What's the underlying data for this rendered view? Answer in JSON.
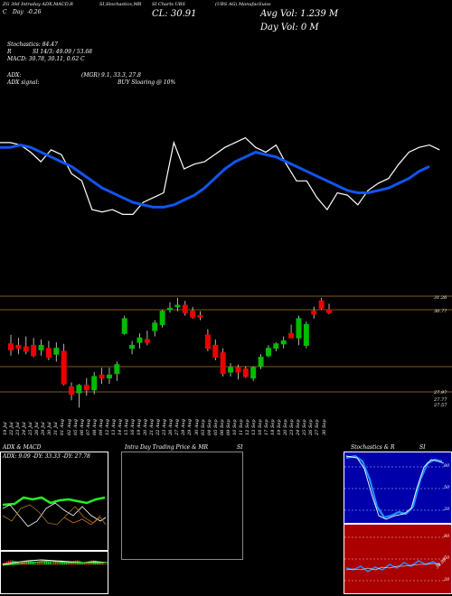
{
  "header": {
    "line1": "ZG 30d Intraday ADX,MACD,R",
    "line1b": "SI,Stochastics,MR",
    "line1c": "SI Charts UBS",
    "line1d": "(UBS AG) ManufacSuiss",
    "c_label": "C",
    "c_label2": "C",
    "change": "-0.26",
    "cl": "CL: 30.91",
    "avg_vol": "Avg Vol: 1.239 M",
    "day_vol": "Day Vol: 0  M"
  },
  "indicators": {
    "stochastics": "Stochastics: 84.47",
    "r": "R",
    "r_value": "SI 14/3: 49.09 / 53.68",
    "macd": "MACD: 30.78, 30.11, 0.62  C",
    "adx": "ADX:",
    "mrsi": "(MGR) 9.1, 33.3,  27.8",
    "adx_signal": "ADX  signal:",
    "signal": "BUY Sloaring @ 10%"
  },
  "price_labels": {
    "high": "31.26",
    "mid": "30.77",
    "low1": "27.97",
    "low2": "27.77",
    "low3": "27.57"
  },
  "dates": [
    "19 Jul",
    "22 Jul",
    "23 Jul",
    "24 Jul",
    "25 Jul",
    "26 Jul",
    "29 Jul",
    "30 Jul",
    "31 Jul",
    "01 Aug",
    "02 Aug",
    "05 Aug",
    "06 Aug",
    "07 Aug",
    "08 Aug",
    "09 Aug",
    "12 Aug",
    "13 Aug",
    "14 Aug",
    "15 Aug",
    "16 Aug",
    "19 Aug",
    "20 Aug",
    "21 Aug",
    "22 Aug",
    "23 Aug",
    "26 Aug",
    "27 Aug",
    "28 Aug",
    "29 Aug",
    "30 Aug",
    "03 Sep",
    "04 Sep",
    "05 Sep",
    "06 Sep",
    "09 Sep",
    "10 Sep",
    "11 Sep",
    "12 Sep",
    "13 Sep",
    "16 Sep",
    "17 Sep",
    "18 Sep",
    "19 Sep",
    "20 Sep",
    "23 Sep",
    "24 Sep",
    "25 Sep",
    "26 Sep",
    "27 Sep",
    "30 Sep"
  ],
  "panels": {
    "adx_title": "ADX  & MACD",
    "adx_values": "ADX: 9.09 -DY: 33.33 -DY: 27.78",
    "intraday_title": "Intra  Day Trading Price  & MR",
    "intraday_si": "SI",
    "stoch_title": "Stochastics & R",
    "stoch_si": "SI",
    "stoch_ticks": [
      "80",
      "50",
      "20"
    ],
    "rsi_ticks": [
      "80",
      "50",
      "20"
    ],
    "rsi_value": "30.98"
  },
  "colors": {
    "bg": "#000000",
    "up": "#00bb00",
    "down": "#ee0000",
    "ma": "#1155ee",
    "gold": "#aa7722",
    "rsi_bg": "#aa0000",
    "stoch_bg": "#0000aa"
  },
  "chart_data": {
    "type": "candlestick",
    "candles": [
      {
        "o": 29.75,
        "h": 30.05,
        "l": 29.35,
        "c": 29.55
      },
      {
        "o": 29.7,
        "h": 29.95,
        "l": 29.4,
        "c": 29.6
      },
      {
        "o": 29.65,
        "h": 30.0,
        "l": 29.4,
        "c": 29.5
      },
      {
        "o": 29.7,
        "h": 29.95,
        "l": 29.3,
        "c": 29.35
      },
      {
        "o": 29.55,
        "h": 29.9,
        "l": 29.35,
        "c": 29.7
      },
      {
        "o": 29.6,
        "h": 29.85,
        "l": 29.2,
        "c": 29.3
      },
      {
        "o": 29.4,
        "h": 29.8,
        "l": 29.15,
        "c": 29.6
      },
      {
        "o": 29.5,
        "h": 29.75,
        "l": 28.35,
        "c": 28.4
      },
      {
        "o": 28.3,
        "h": 28.45,
        "l": 27.85,
        "c": 28.05
      },
      {
        "o": 28.1,
        "h": 28.4,
        "l": 27.6,
        "c": 28.35
      },
      {
        "o": 28.35,
        "h": 28.6,
        "l": 28.0,
        "c": 28.2
      },
      {
        "o": 28.2,
        "h": 28.8,
        "l": 28.05,
        "c": 28.65
      },
      {
        "o": 28.7,
        "h": 28.95,
        "l": 28.4,
        "c": 28.6
      },
      {
        "o": 28.6,
        "h": 28.95,
        "l": 28.4,
        "c": 28.7
      },
      {
        "o": 28.75,
        "h": 29.15,
        "l": 28.5,
        "c": 29.05
      },
      {
        "o": 30.1,
        "h": 30.7,
        "l": 30.05,
        "c": 30.6
      },
      {
        "o": 29.6,
        "h": 29.85,
        "l": 29.4,
        "c": 29.7
      },
      {
        "o": 29.8,
        "h": 30.1,
        "l": 29.6,
        "c": 29.95
      },
      {
        "o": 29.9,
        "h": 30.2,
        "l": 29.7,
        "c": 29.8
      },
      {
        "o": 30.2,
        "h": 30.55,
        "l": 30.0,
        "c": 30.45
      },
      {
        "o": 30.4,
        "h": 30.9,
        "l": 30.3,
        "c": 30.85
      },
      {
        "o": 30.95,
        "h": 31.15,
        "l": 30.8,
        "c": 30.95
      },
      {
        "o": 31.0,
        "h": 31.3,
        "l": 30.85,
        "c": 31.05
      },
      {
        "o": 31.05,
        "h": 31.2,
        "l": 30.7,
        "c": 30.8
      },
      {
        "o": 30.85,
        "h": 31.0,
        "l": 30.6,
        "c": 30.65
      },
      {
        "o": 30.7,
        "h": 30.85,
        "l": 30.55,
        "c": 30.65
      },
      {
        "o": 30.05,
        "h": 30.25,
        "l": 29.5,
        "c": 29.6
      },
      {
        "o": 29.7,
        "h": 29.9,
        "l": 29.2,
        "c": 29.3
      },
      {
        "o": 29.45,
        "h": 29.6,
        "l": 28.65,
        "c": 28.75
      },
      {
        "o": 28.8,
        "h": 29.1,
        "l": 28.65,
        "c": 28.95
      },
      {
        "o": 28.95,
        "h": 29.05,
        "l": 28.55,
        "c": 28.8
      },
      {
        "o": 28.9,
        "h": 29.0,
        "l": 28.6,
        "c": 28.65
      },
      {
        "o": 28.6,
        "h": 29.0,
        "l": 28.5,
        "c": 28.95
      },
      {
        "o": 29.0,
        "h": 29.4,
        "l": 28.9,
        "c": 29.3
      },
      {
        "o": 29.35,
        "h": 29.7,
        "l": 29.3,
        "c": 29.6
      },
      {
        "o": 29.6,
        "h": 29.8,
        "l": 29.5,
        "c": 29.75
      },
      {
        "o": 29.75,
        "h": 30.0,
        "l": 29.6,
        "c": 29.85
      },
      {
        "o": 30.1,
        "h": 30.4,
        "l": 29.95,
        "c": 29.95
      },
      {
        "o": 29.95,
        "h": 30.7,
        "l": 29.7,
        "c": 30.6
      },
      {
        "o": 29.7,
        "h": 30.5,
        "l": 29.6,
        "c": 30.4
      },
      {
        "o": 30.85,
        "h": 31.0,
        "l": 30.6,
        "c": 30.75
      },
      {
        "o": 31.2,
        "h": 31.3,
        "l": 30.9,
        "c": 30.95
      },
      {
        "o": 30.9,
        "h": 31.1,
        "l": 30.75,
        "c": 30.8
      }
    ],
    "ma_line": [
      30.25,
      30.25,
      30.3,
      30.25,
      30.15,
      30.05,
      29.95,
      29.85,
      29.7,
      29.55,
      29.4,
      29.3,
      29.2,
      29.1,
      29.05,
      29.0,
      29.0,
      29.05,
      29.15,
      29.25,
      29.4,
      29.6,
      29.8,
      29.95,
      30.05,
      30.15,
      30.1,
      30.05,
      29.95,
      29.85,
      29.75,
      29.65,
      29.55,
      29.45,
      29.35,
      29.3,
      29.3,
      29.35,
      29.4,
      29.5,
      29.6,
      29.75,
      29.85
    ],
    "price_line": [
      30.35,
      30.35,
      30.3,
      30.15,
      29.95,
      30.2,
      30.1,
      29.7,
      29.55,
      28.95,
      28.9,
      28.95,
      28.85,
      28.85,
      29.1,
      29.2,
      29.3,
      30.35,
      29.8,
      29.9,
      29.95,
      30.1,
      30.25,
      30.35,
      30.45,
      30.25,
      30.15,
      30.3,
      29.9,
      29.55,
      29.55,
      29.2,
      28.95,
      29.3,
      29.25,
      29.05,
      29.35,
      29.5,
      29.6,
      29.9,
      30.15,
      30.25,
      30.3,
      30.2
    ],
    "ylim": [
      27.4,
      31.6
    ]
  }
}
